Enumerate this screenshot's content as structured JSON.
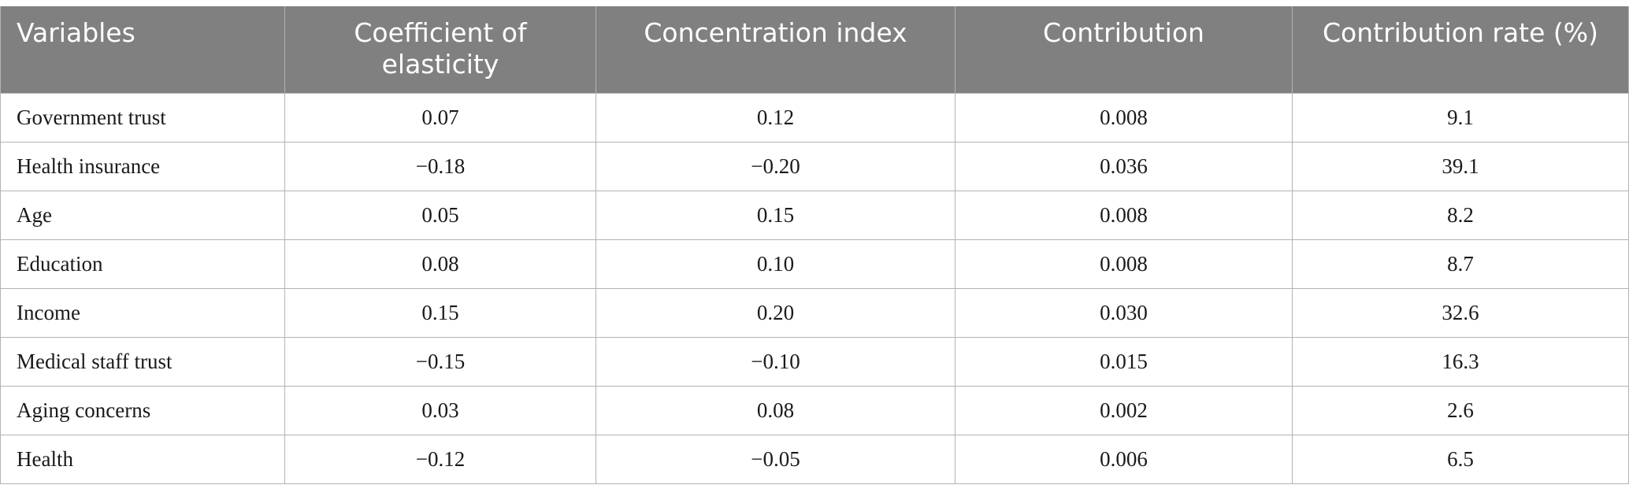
{
  "table": {
    "headers": [
      "Variables",
      "Coefficient of elasticity",
      "Concentration index",
      "Contribution",
      "Contribution rate (%)"
    ],
    "rows": [
      [
        "Government trust",
        "0.07",
        "0.12",
        "0.008",
        "9.1"
      ],
      [
        "Health insurance",
        "−0.18",
        "−0.20",
        "0.036",
        "39.1"
      ],
      [
        "Age",
        "0.05",
        "0.15",
        "0.008",
        "8.2"
      ],
      [
        "Education",
        "0.08",
        "0.10",
        "0.008",
        "8.7"
      ],
      [
        "Income",
        "0.15",
        "0.20",
        "0.030",
        "32.6"
      ],
      [
        "Medical staff trust",
        "−0.15",
        "−0.10",
        "0.015",
        "16.3"
      ],
      [
        "Aging concerns",
        "0.03",
        "0.08",
        "0.002",
        "2.6"
      ],
      [
        "Health",
        "−0.12",
        "−0.05",
        "0.006",
        "6.5"
      ]
    ]
  },
  "colors": {
    "header_bg": "#808080",
    "header_text": "#ffffff",
    "grid": "#b3b3b3"
  }
}
